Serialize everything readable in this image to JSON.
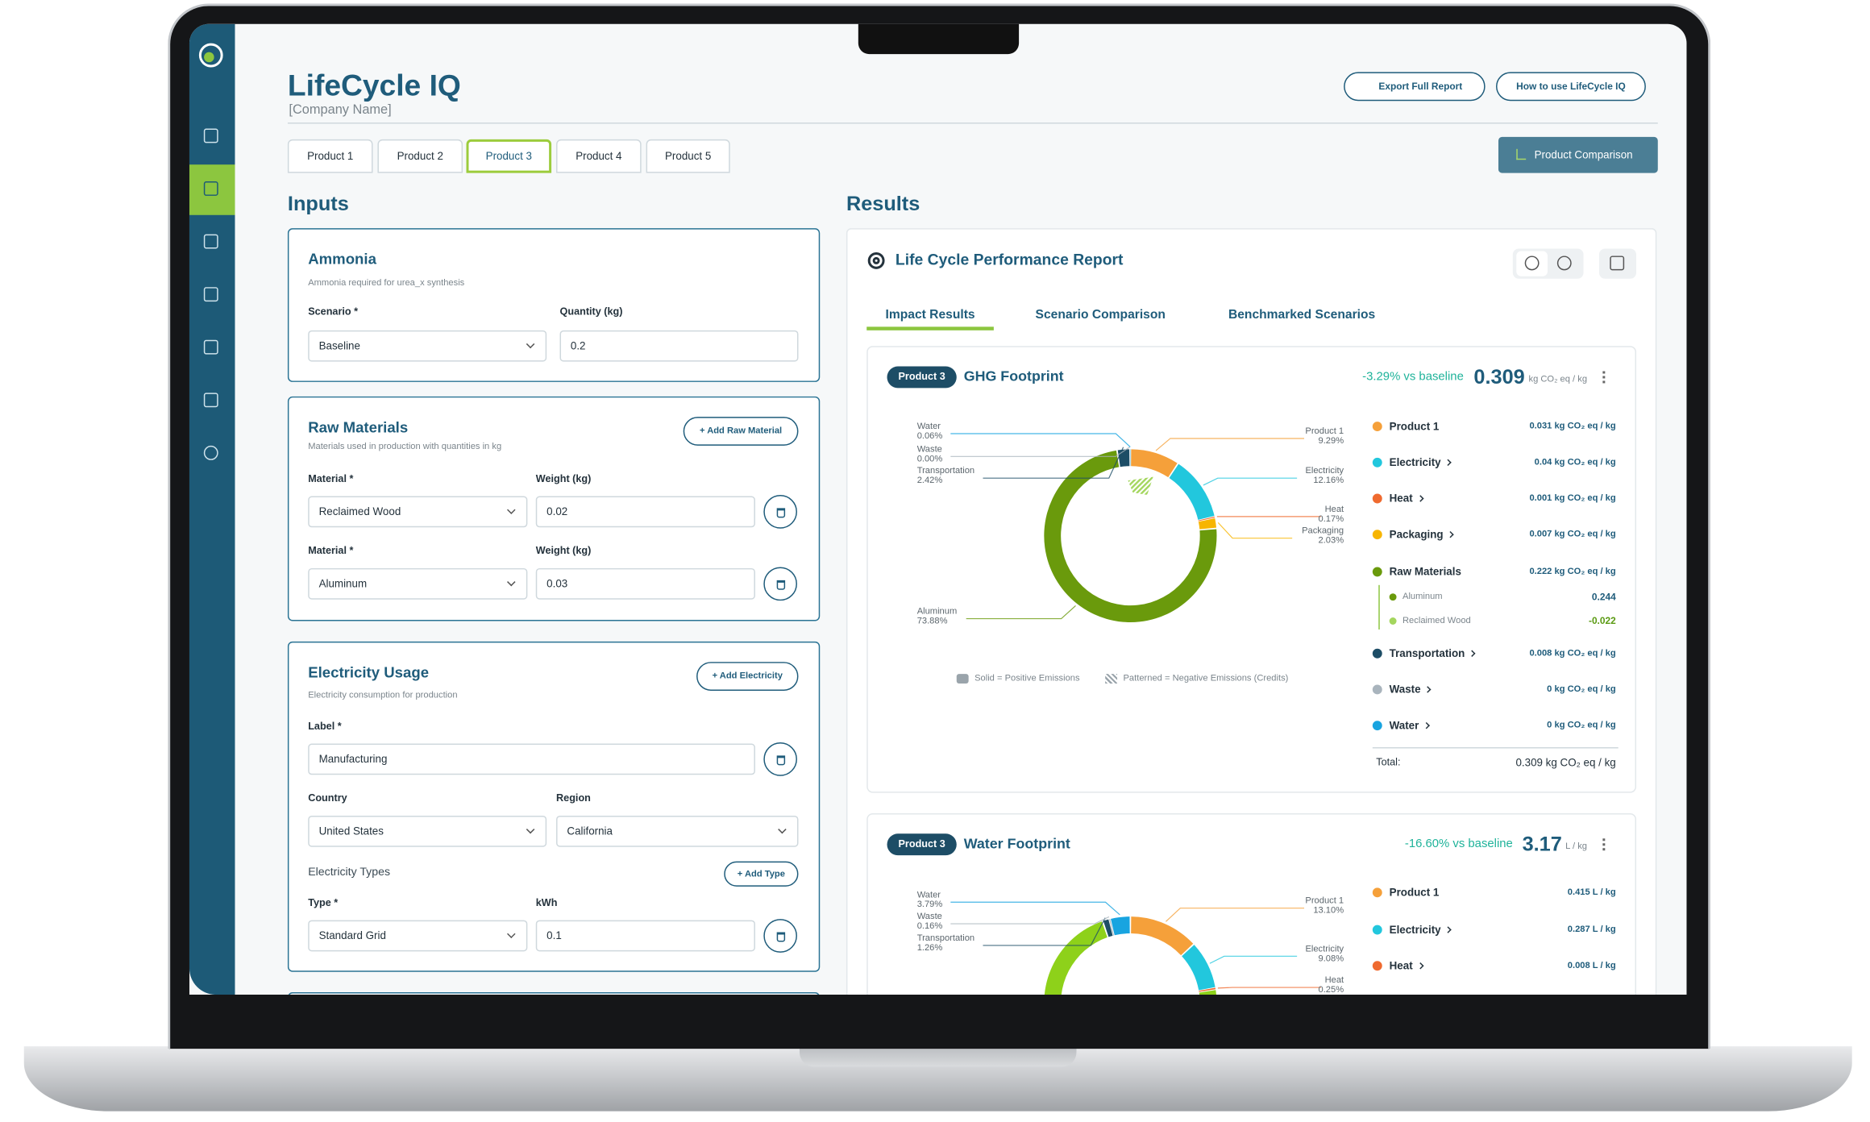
{
  "app": {
    "title": "LifeCycle IQ",
    "company": "[Company Name]",
    "buttons": [
      "Export Full Report",
      "How to use LifeCycle IQ"
    ],
    "tabs": [
      "Product 1",
      "Product 2",
      "Product 3",
      "Product 4",
      "Product 5"
    ],
    "comparison": "Product Comparison"
  },
  "inputs": {
    "heading": "Inputs",
    "ammonia": {
      "title": "Ammonia",
      "desc": "Ammonia required for urea_x synthesis",
      "scenario_label": "Scenario *",
      "quantity_label": "Quantity (kg)",
      "scenario": "Baseline",
      "quantity": "0.2"
    },
    "raw": {
      "title": "Raw Materials",
      "add": "+ Add Raw Material",
      "desc": "Materials used in production with quantities in kg",
      "rows": [
        {
          "material_label": "Material *",
          "weight_label": "Weight (kg)",
          "material": "Reclaimed Wood",
          "weight": "0.02"
        },
        {
          "material_label": "Material *",
          "weight_label": "Weight (kg)",
          "material": "Aluminum",
          "weight": "0.03"
        }
      ]
    },
    "electricity": {
      "title": "Electricity Usage",
      "add": "+ Add Electricity",
      "desc": "Electricity consumption for production",
      "label_label": "Label *",
      "label": "Manufacturing",
      "country_label": "Country",
      "region_label": "Region",
      "country": "United States",
      "region": "California",
      "types_label": "Electricity Types",
      "add_type": "+ Add Type",
      "type_label": "Type *",
      "kwh_label": "kWh",
      "type": "Standard Grid",
      "kwh": "0.1"
    }
  },
  "results": {
    "heading": "Results",
    "report_title": "Life Cycle Performance Report",
    "tabs": [
      "Impact Results",
      "Scenario Comparison",
      "Benchmarked Scenarios"
    ],
    "ghg": {
      "badge": "Product 3",
      "title": "GHG Footprint",
      "delta": "-3.29% vs baseline",
      "value": "0.309",
      "unit": "kg CO₂ eq / kg",
      "note_solid": "Solid = Positive Emissions",
      "note_pattern": "Patterned = Negative Emissions (Credits)",
      "legend": [
        {
          "name": "Product 1",
          "value": "0.031 kg CO₂ eq / kg",
          "color": "#f5a03a"
        },
        {
          "name": "Electricity",
          "value": "0.04 kg CO₂ eq / kg",
          "color": "#22c7dd"
        },
        {
          "name": "Heat",
          "value": "0.001 kg CO₂ eq / kg",
          "color": "#ef6a2f"
        },
        {
          "name": "Packaging",
          "value": "0.007 kg CO₂ eq / kg",
          "color": "#f7b500"
        },
        {
          "name": "Raw Materials",
          "value": "0.222 kg CO₂ eq / kg",
          "color": "#6a9a0c"
        },
        {
          "name": "Transportation",
          "value": "0.008 kg CO₂ eq / kg",
          "color": "#1d4d66"
        },
        {
          "name": "Waste",
          "value": "0 kg CO₂ eq / kg",
          "color": "#a9b4bd"
        },
        {
          "name": "Water",
          "value": "0 kg CO₂ eq / kg",
          "color": "#18a4e0"
        }
      ],
      "sub": [
        {
          "name": "Aluminum",
          "value": "0.244",
          "color": "#6a9a0c"
        },
        {
          "name": "Reclaimed Wood",
          "value": "-0.022",
          "color": "#a4d65e"
        }
      ],
      "total_label": "Total:",
      "total": "0.309 kg CO₂ eq / kg"
    },
    "water": {
      "badge": "Product 3",
      "title": "Water Footprint",
      "delta": "-16.60% vs baseline",
      "value": "3.17",
      "unit": "L / kg",
      "legend": [
        {
          "name": "Product 1",
          "value": "0.415 L / kg",
          "color": "#f5a03a"
        },
        {
          "name": "Electricity",
          "value": "0.287 L / kg",
          "color": "#22c7dd"
        },
        {
          "name": "Heat",
          "value": "0.008 L / kg",
          "color": "#ef6a2f"
        }
      ]
    }
  },
  "chart_data": [
    {
      "type": "pie",
      "categories": [
        "Product 1",
        "Electricity",
        "Heat",
        "Packaging",
        "Aluminum",
        "Transportation",
        "Waste",
        "Water"
      ],
      "values": [
        9.29,
        12.16,
        0.17,
        2.03,
        73.88,
        2.42,
        0.0,
        0.06
      ],
      "value_labels": [
        "9.29%",
        "12.16%",
        "0.17%",
        "2.03%",
        "73.88%",
        "2.42%",
        "0.00%",
        "0.06%"
      ],
      "colors": [
        "#f5a03a",
        "#22c7dd",
        "#ef6a2f",
        "#f7b500",
        "#6a9a0c",
        "#1d4d66",
        "#a9b4bd",
        "#18a4e0"
      ]
    },
    {
      "type": "pie",
      "categories": [
        "Product 1",
        "Electricity",
        "Heat",
        "Transportation",
        "Waste",
        "Water"
      ],
      "values": [
        13.1,
        9.08,
        0.25,
        1.26,
        0.16,
        3.79
      ],
      "value_labels": [
        "13.10%",
        "9.08%",
        "0.25%",
        "1.26%",
        "0.16%",
        "3.79%"
      ],
      "colors": [
        "#f5a03a",
        "#22c7dd",
        "#ef6a2f",
        "#1d4d66",
        "#a9b4bd",
        "#18a4e0"
      ]
    }
  ]
}
